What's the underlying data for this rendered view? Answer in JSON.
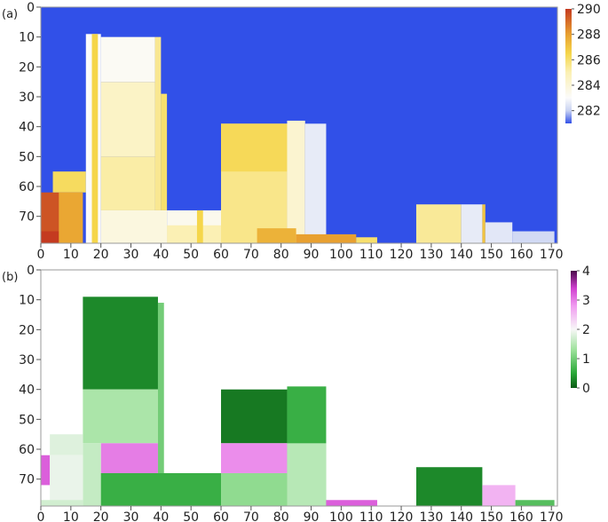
{
  "chart_data": [
    {
      "type": "heatmap",
      "panel_label": "(a)",
      "x_ticks": [
        0,
        10,
        20,
        30,
        40,
        50,
        60,
        70,
        80,
        90,
        100,
        110,
        120,
        130,
        140,
        150,
        160,
        170
      ],
      "y_ticks": [
        0,
        10,
        20,
        30,
        40,
        50,
        60,
        70
      ],
      "xlim": [
        0,
        172
      ],
      "ylim": [
        0,
        79
      ],
      "y_inverted": true,
      "grid": false,
      "background_value": 281,
      "background_color": "#3150e8",
      "colorbar": {
        "ticks": [
          282,
          284,
          286,
          288,
          290
        ],
        "range": [
          281,
          290
        ],
        "stops": [
          {
            "v": 281,
            "color": "#3150e8"
          },
          {
            "v": 282,
            "color": "#c8d2f2"
          },
          {
            "v": 283,
            "color": "#fbfbfb"
          },
          {
            "v": 285,
            "color": "#fbf0b4"
          },
          {
            "v": 286.5,
            "color": "#f5d64a"
          },
          {
            "v": 288,
            "color": "#e8a030"
          },
          {
            "v": 290,
            "color": "#c43a20"
          }
        ]
      },
      "regions": [
        {
          "x": [
            0,
            13
          ],
          "y": [
            62,
            79
          ],
          "value": 289.5
        },
        {
          "x": [
            0,
            7
          ],
          "y": [
            75,
            79
          ],
          "value": 290
        },
        {
          "x": [
            4,
            15
          ],
          "y": [
            55,
            62
          ],
          "value": 286.2
        },
        {
          "x": [
            6,
            14
          ],
          "y": [
            62,
            79
          ],
          "value": 287.8
        },
        {
          "x": [
            15,
            20
          ],
          "y": [
            9,
            79
          ],
          "value": 283.0
        },
        {
          "x": [
            17,
            19
          ],
          "y": [
            9,
            79
          ],
          "value": 286.5
        },
        {
          "x": [
            20,
            38
          ],
          "y": [
            10,
            25
          ],
          "value": 283.2
        },
        {
          "x": [
            20,
            38
          ],
          "y": [
            25,
            50
          ],
          "value": 284.5
        },
        {
          "x": [
            20,
            38
          ],
          "y": [
            50,
            68
          ],
          "value": 285.2
        },
        {
          "x": [
            38,
            40
          ],
          "y": [
            10,
            68
          ],
          "value": 285.5
        },
        {
          "x": [
            40,
            42
          ],
          "y": [
            29,
            68
          ],
          "value": 286.0
        },
        {
          "x": [
            20,
            42
          ],
          "y": [
            68,
            79
          ],
          "value": 283.8
        },
        {
          "x": [
            42,
            72
          ],
          "y": [
            68,
            79
          ],
          "value": 283.4
        },
        {
          "x": [
            42,
            60
          ],
          "y": [
            73,
            79
          ],
          "value": 285.0
        },
        {
          "x": [
            52,
            54
          ],
          "y": [
            68,
            79
          ],
          "value": 286.5
        },
        {
          "x": [
            60,
            82
          ],
          "y": [
            39,
            79
          ],
          "value": 285.6
        },
        {
          "x": [
            60,
            82
          ],
          "y": [
            39,
            55
          ],
          "value": 286.3
        },
        {
          "x": [
            82,
            88
          ],
          "y": [
            38,
            79
          ],
          "value": 284.2
        },
        {
          "x": [
            88,
            95
          ],
          "y": [
            39,
            79
          ],
          "value": 282.6
        },
        {
          "x": [
            72,
            85
          ],
          "y": [
            74,
            79
          ],
          "value": 287.5
        },
        {
          "x": [
            85,
            105
          ],
          "y": [
            76,
            79
          ],
          "value": 288.0
        },
        {
          "x": [
            105,
            112
          ],
          "y": [
            77,
            79
          ],
          "value": 286.0
        },
        {
          "x": [
            125,
            140
          ],
          "y": [
            66,
            79
          ],
          "value": 285.4
        },
        {
          "x": [
            140,
            147
          ],
          "y": [
            66,
            79
          ],
          "value": 282.6
        },
        {
          "x": [
            147,
            148
          ],
          "y": [
            66,
            79
          ],
          "value": 287.0
        },
        {
          "x": [
            148,
            157
          ],
          "y": [
            72,
            79
          ],
          "value": 282.5
        },
        {
          "x": [
            157,
            171
          ],
          "y": [
            75,
            79
          ],
          "value": 282.2
        }
      ]
    },
    {
      "type": "heatmap",
      "panel_label": "(b)",
      "x_ticks": [
        0,
        10,
        20,
        30,
        40,
        50,
        60,
        70,
        80,
        90,
        100,
        110,
        120,
        130,
        140,
        150,
        160,
        170
      ],
      "y_ticks": [
        0,
        10,
        20,
        30,
        40,
        50,
        60,
        70
      ],
      "xlim": [
        0,
        172
      ],
      "ylim": [
        0,
        79
      ],
      "y_inverted": true,
      "grid": true,
      "background_color": "#ffffff",
      "colorbar": {
        "ticks": [
          0,
          1,
          2,
          3,
          4
        ],
        "range": [
          0,
          4
        ],
        "stops": [
          {
            "v": 0,
            "color": "#0a5a14"
          },
          {
            "v": 0.5,
            "color": "#2aa838"
          },
          {
            "v": 1.3,
            "color": "#9ee29c"
          },
          {
            "v": 2.0,
            "color": "#f7f7f7"
          },
          {
            "v": 2.8,
            "color": "#f09cf0"
          },
          {
            "v": 3.4,
            "color": "#d040d0"
          },
          {
            "v": 4,
            "color": "#4a0a4a"
          }
        ]
      },
      "regions": [
        {
          "x": [
            14,
            39
          ],
          "y": [
            9,
            40
          ],
          "value": 0.3
        },
        {
          "x": [
            14,
            39
          ],
          "y": [
            40,
            58
          ],
          "value": 1.4
        },
        {
          "x": [
            20,
            39
          ],
          "y": [
            58,
            68
          ],
          "value": 3.0
        },
        {
          "x": [
            14,
            20
          ],
          "y": [
            58,
            79
          ],
          "value": 1.6
        },
        {
          "x": [
            39,
            41
          ],
          "y": [
            11,
            68
          ],
          "value": 1.0
        },
        {
          "x": [
            3,
            14
          ],
          "y": [
            55,
            62
          ],
          "value": 1.8
        },
        {
          "x": [
            0,
            3
          ],
          "y": [
            62,
            72
          ],
          "value": 3.2
        },
        {
          "x": [
            3,
            14
          ],
          "y": [
            62,
            79
          ],
          "value": 1.9
        },
        {
          "x": [
            0,
            14
          ],
          "y": [
            77,
            79
          ],
          "value": 1.7
        },
        {
          "x": [
            20,
            60
          ],
          "y": [
            68,
            79
          ],
          "value": 0.6
        },
        {
          "x": [
            60,
            82
          ],
          "y": [
            68,
            79
          ],
          "value": 1.2
        },
        {
          "x": [
            60,
            82
          ],
          "y": [
            40,
            58
          ],
          "value": 0.2
        },
        {
          "x": [
            60,
            82
          ],
          "y": [
            58,
            68
          ],
          "value": 2.9
        },
        {
          "x": [
            82,
            95
          ],
          "y": [
            39,
            79
          ],
          "value": 0.6
        },
        {
          "x": [
            82,
            95
          ],
          "y": [
            58,
            79
          ],
          "value": 1.5
        },
        {
          "x": [
            95,
            112
          ],
          "y": [
            77,
            79
          ],
          "value": 3.2
        },
        {
          "x": [
            125,
            147
          ],
          "y": [
            66,
            79
          ],
          "value": 0.3
        },
        {
          "x": [
            147,
            158
          ],
          "y": [
            72,
            79
          ],
          "value": 2.6
        },
        {
          "x": [
            158,
            171
          ],
          "y": [
            77,
            79
          ],
          "value": 0.8
        }
      ]
    }
  ]
}
